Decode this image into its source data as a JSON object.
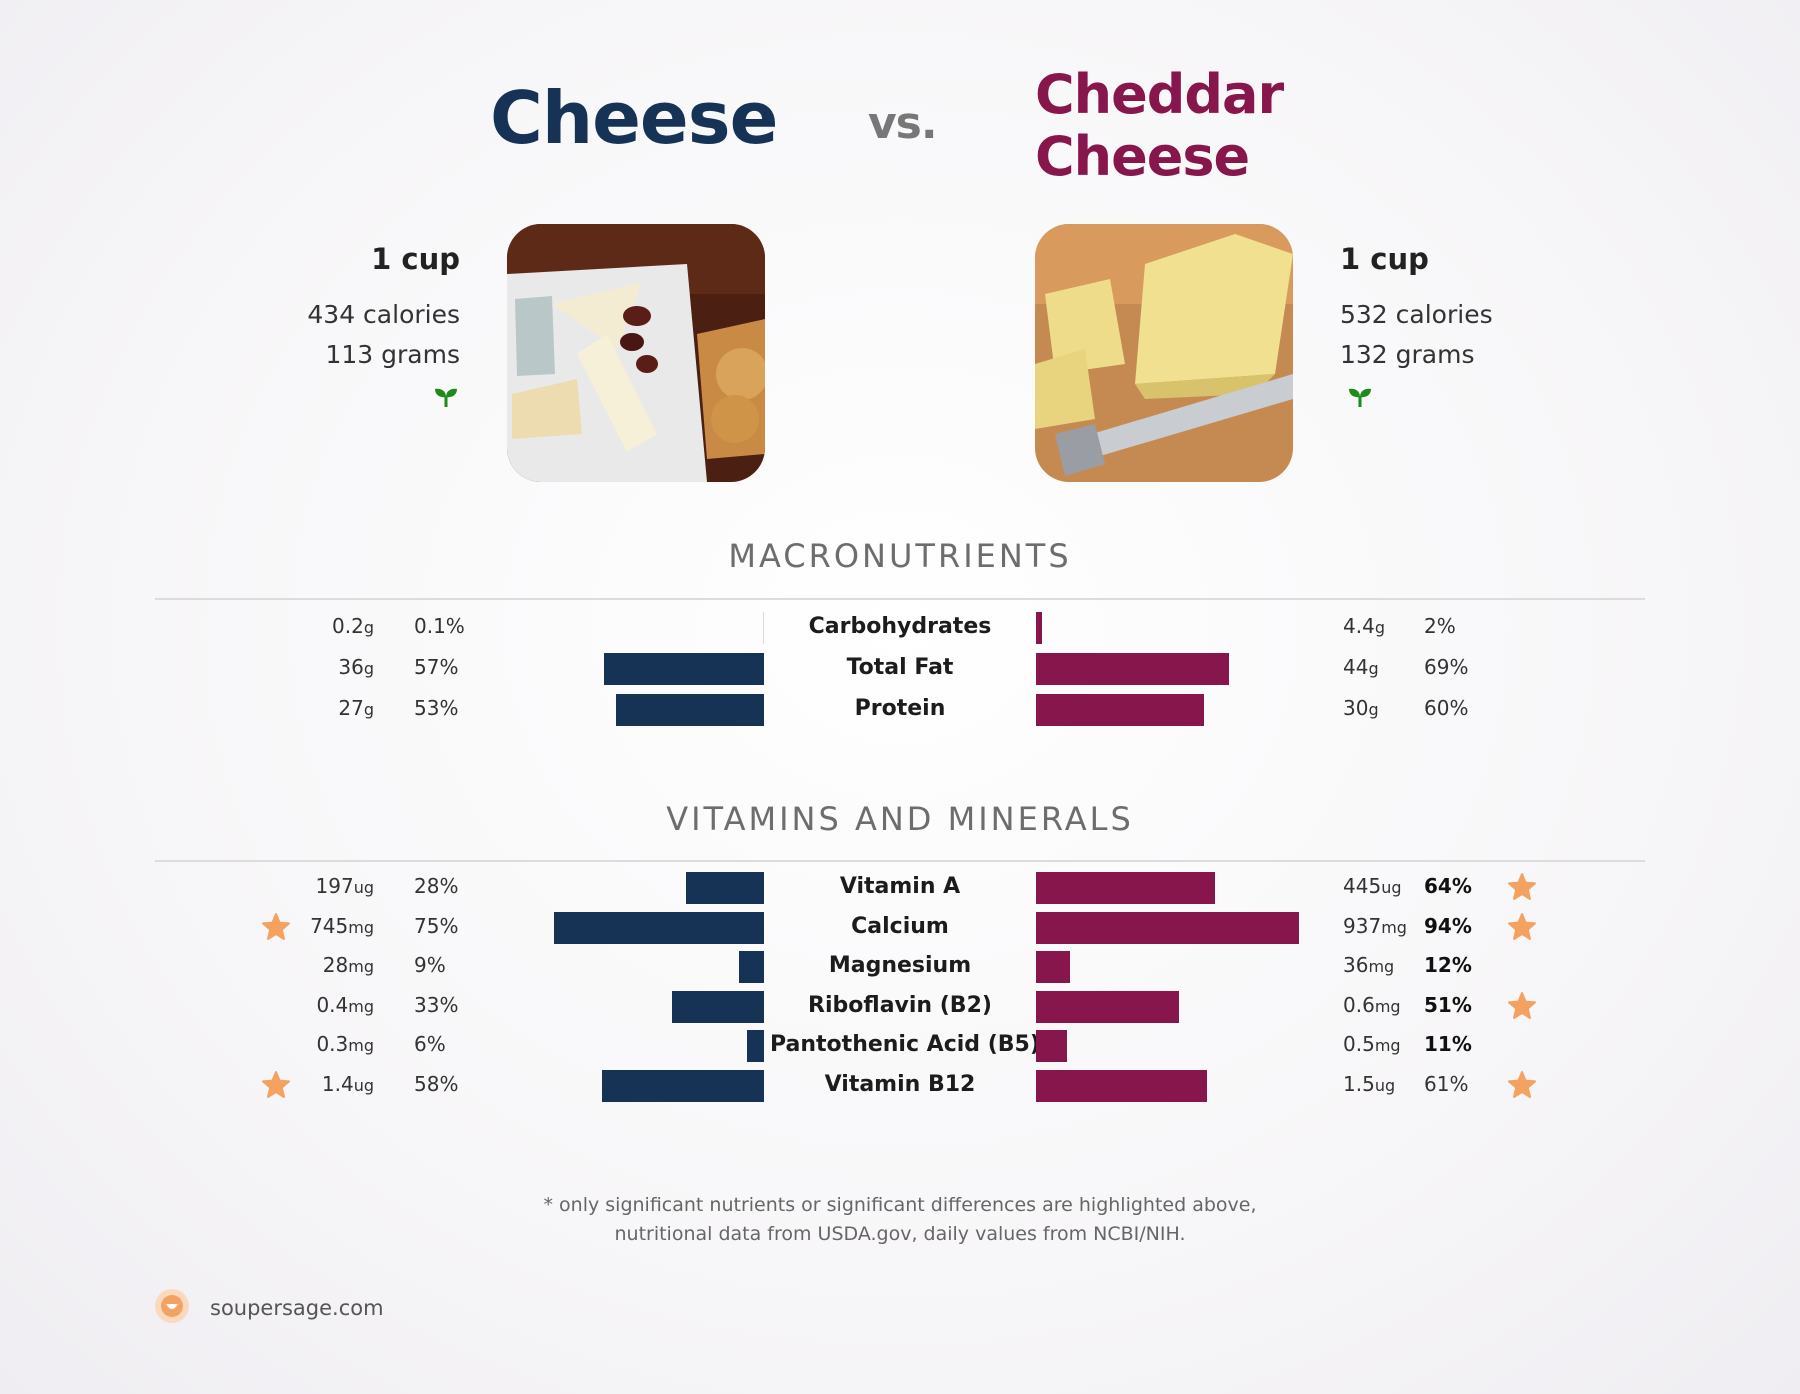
{
  "header": {
    "left_title": "Cheese",
    "vs": "vs.",
    "right_title_line1": "Cheddar",
    "right_title_line2": "Cheese"
  },
  "left_food": {
    "serving": "1 cup",
    "calories": "434 calories",
    "grams": "113 grams",
    "icon": "sprout-icon"
  },
  "right_food": {
    "serving": "1 cup",
    "calories": "532 calories",
    "grams": "132 grams",
    "icon": "sprout-icon"
  },
  "sections": {
    "macros": "MACRONUTRIENTS",
    "vitamins": "VITAMINS AND MINERALS"
  },
  "footer": {
    "note_line1": "* only significant nutrients or significant differences are highlighted above,",
    "note_line2": "nutritional data from USDA.gov, daily values from NCBI/NIH.",
    "brand": "soupersage.com"
  },
  "colors": {
    "left": "#163356",
    "right": "#86164b",
    "star": "#f4a261",
    "sprout": "#1e8a1e"
  },
  "chart_data": [
    {
      "type": "bar",
      "title": "MACRONUTRIENTS",
      "categories": [
        "Carbohydrates",
        "Total Fat",
        "Protein"
      ],
      "series": [
        {
          "name": "Cheese",
          "amounts": [
            [
              "0.2",
              "g"
            ],
            [
              "36",
              "g"
            ],
            [
              "27",
              "g"
            ]
          ],
          "percent_labels": [
            "0.1%",
            "57%",
            "53%"
          ],
          "values": [
            0.1,
            57,
            53
          ],
          "stars": [
            false,
            false,
            false
          ],
          "bold": [
            false,
            false,
            false
          ]
        },
        {
          "name": "Cheddar Cheese",
          "amounts": [
            [
              "4.4",
              "g"
            ],
            [
              "44",
              "g"
            ],
            [
              "30",
              "g"
            ]
          ],
          "percent_labels": [
            "2%",
            "69%",
            "60%"
          ],
          "values": [
            2,
            69,
            60
          ],
          "stars": [
            false,
            false,
            false
          ],
          "bold": [
            false,
            false,
            false
          ]
        }
      ]
    },
    {
      "type": "bar",
      "title": "VITAMINS AND MINERALS",
      "categories": [
        "Vitamin A",
        "Calcium",
        "Magnesium",
        "Riboflavin (B2)",
        "Pantothenic Acid (B5)",
        "Vitamin B12"
      ],
      "series": [
        {
          "name": "Cheese",
          "amounts": [
            [
              "197",
              "ug"
            ],
            [
              "745",
              "mg"
            ],
            [
              "28",
              "mg"
            ],
            [
              "0.4",
              "mg"
            ],
            [
              "0.3",
              "mg"
            ],
            [
              "1.4",
              "ug"
            ]
          ],
          "percent_labels": [
            "28%",
            "75%",
            "9%",
            "33%",
            "6%",
            "58%"
          ],
          "values": [
            28,
            75,
            9,
            33,
            6,
            58
          ],
          "stars": [
            false,
            true,
            false,
            false,
            false,
            true
          ],
          "bold": [
            false,
            false,
            false,
            false,
            false,
            false
          ]
        },
        {
          "name": "Cheddar Cheese",
          "amounts": [
            [
              "445",
              "ug"
            ],
            [
              "937",
              "mg"
            ],
            [
              "36",
              "mg"
            ],
            [
              "0.6",
              "mg"
            ],
            [
              "0.5",
              "mg"
            ],
            [
              "1.5",
              "ug"
            ]
          ],
          "percent_labels": [
            "64%",
            "94%",
            "12%",
            "51%",
            "11%",
            "61%"
          ],
          "values": [
            64,
            94,
            12,
            51,
            11,
            61
          ],
          "stars": [
            true,
            true,
            false,
            true,
            false,
            true
          ],
          "bold": [
            true,
            true,
            true,
            true,
            true,
            false
          ]
        }
      ]
    }
  ]
}
